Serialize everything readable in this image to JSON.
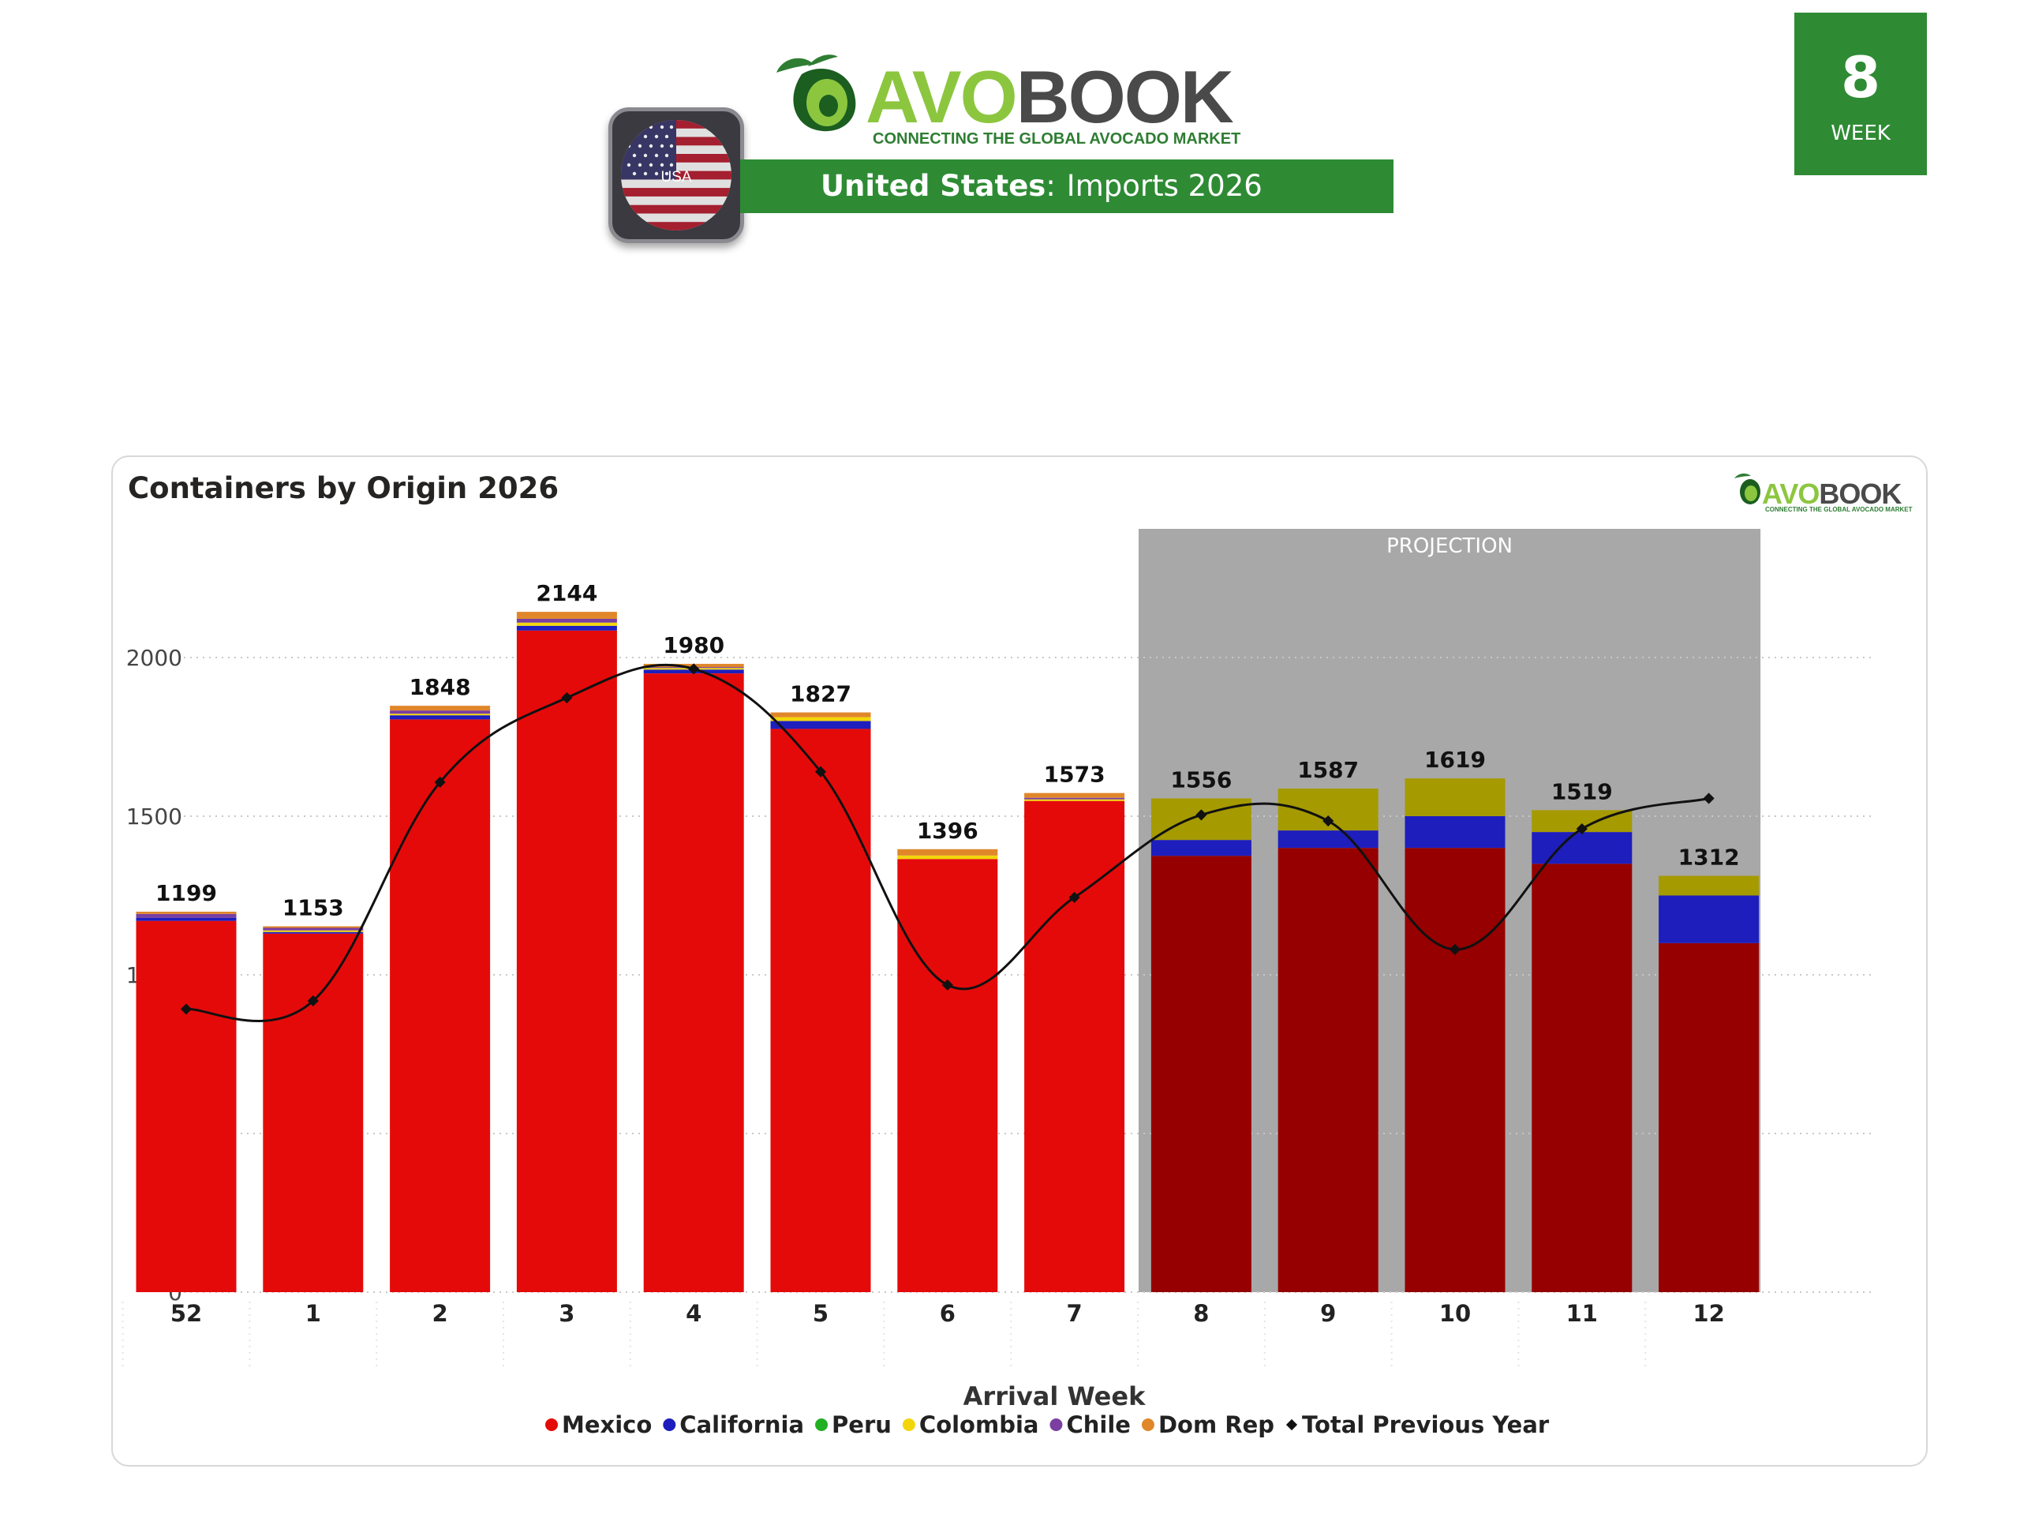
{
  "brand": {
    "name_part1": "AVO",
    "name_part2": "BOOK",
    "tagline": "CONNECTING THE GLOBAL AVOCADO MARKET"
  },
  "header": {
    "flag_label": "USA",
    "country": "United States",
    "separator": ":",
    "subtitle": "Imports 2026"
  },
  "week_badge": {
    "number": "8",
    "label": "WEEK"
  },
  "colors": {
    "mexico": "#e50a0a",
    "mexico_projection": "#960000",
    "california": "#1e1ebd",
    "peru": "#22b022",
    "colombia": "#f2d60a",
    "colombia_projection": "#a59a00",
    "chile": "#7a3fa0",
    "dom_rep": "#e0872a",
    "previous_year": "#111111",
    "brand_green": "#2e8b34",
    "projection_band": "#a8a8a8"
  },
  "chart_data": {
    "type": "bar",
    "stacked": true,
    "title": "Containers by Origin 2026",
    "xlabel": "Arrival Week",
    "ylabel": "",
    "ylim": [
      0,
      2300
    ],
    "yticks": [
      0,
      500,
      1000,
      1500,
      2000
    ],
    "grid": true,
    "legend_position": "bottom",
    "categories": [
      "52",
      "1",
      "2",
      "3",
      "4",
      "5",
      "6",
      "7",
      "8",
      "9",
      "10",
      "11",
      "12"
    ],
    "totals": [
      1199,
      1153,
      1848,
      2144,
      1980,
      1827,
      1396,
      1573,
      1556,
      1587,
      1619,
      1519,
      1312
    ],
    "projection": {
      "label": "PROJECTION",
      "from_category": "8",
      "to_category": "12"
    },
    "series": [
      {
        "name": "Mexico",
        "color_key": "mexico",
        "values": [
          1170,
          1130,
          1805,
          2085,
          1950,
          1775,
          1365,
          1548,
          1375,
          1400,
          1400,
          1350,
          1100
        ]
      },
      {
        "name": "California",
        "color_key": "california",
        "values": [
          10,
          5,
          13,
          15,
          12,
          25,
          0,
          0,
          50,
          55,
          100,
          100,
          150
        ]
      },
      {
        "name": "Peru",
        "color_key": "peru",
        "values": [
          0,
          0,
          0,
          0,
          0,
          0,
          0,
          0,
          0,
          0,
          0,
          0,
          0
        ]
      },
      {
        "name": "Colombia",
        "color_key": "colombia",
        "values": [
          0,
          5,
          5,
          10,
          5,
          12,
          11,
          5,
          131,
          132,
          119,
          69,
          62
        ]
      },
      {
        "name": "Chile",
        "color_key": "chile",
        "values": [
          12,
          8,
          10,
          12,
          3,
          0,
          0,
          5,
          0,
          0,
          0,
          0,
          0
        ]
      },
      {
        "name": "Dom Rep",
        "color_key": "dom_rep",
        "values": [
          7,
          5,
          15,
          22,
          10,
          15,
          20,
          15,
          0,
          0,
          0,
          0,
          0
        ]
      }
    ],
    "line_series": {
      "name": "Total Previous Year",
      "values": [
        892,
        918,
        1607,
        1873,
        1964,
        1640,
        968,
        1244,
        1504,
        1485,
        1080,
        1460,
        1556
      ]
    }
  }
}
